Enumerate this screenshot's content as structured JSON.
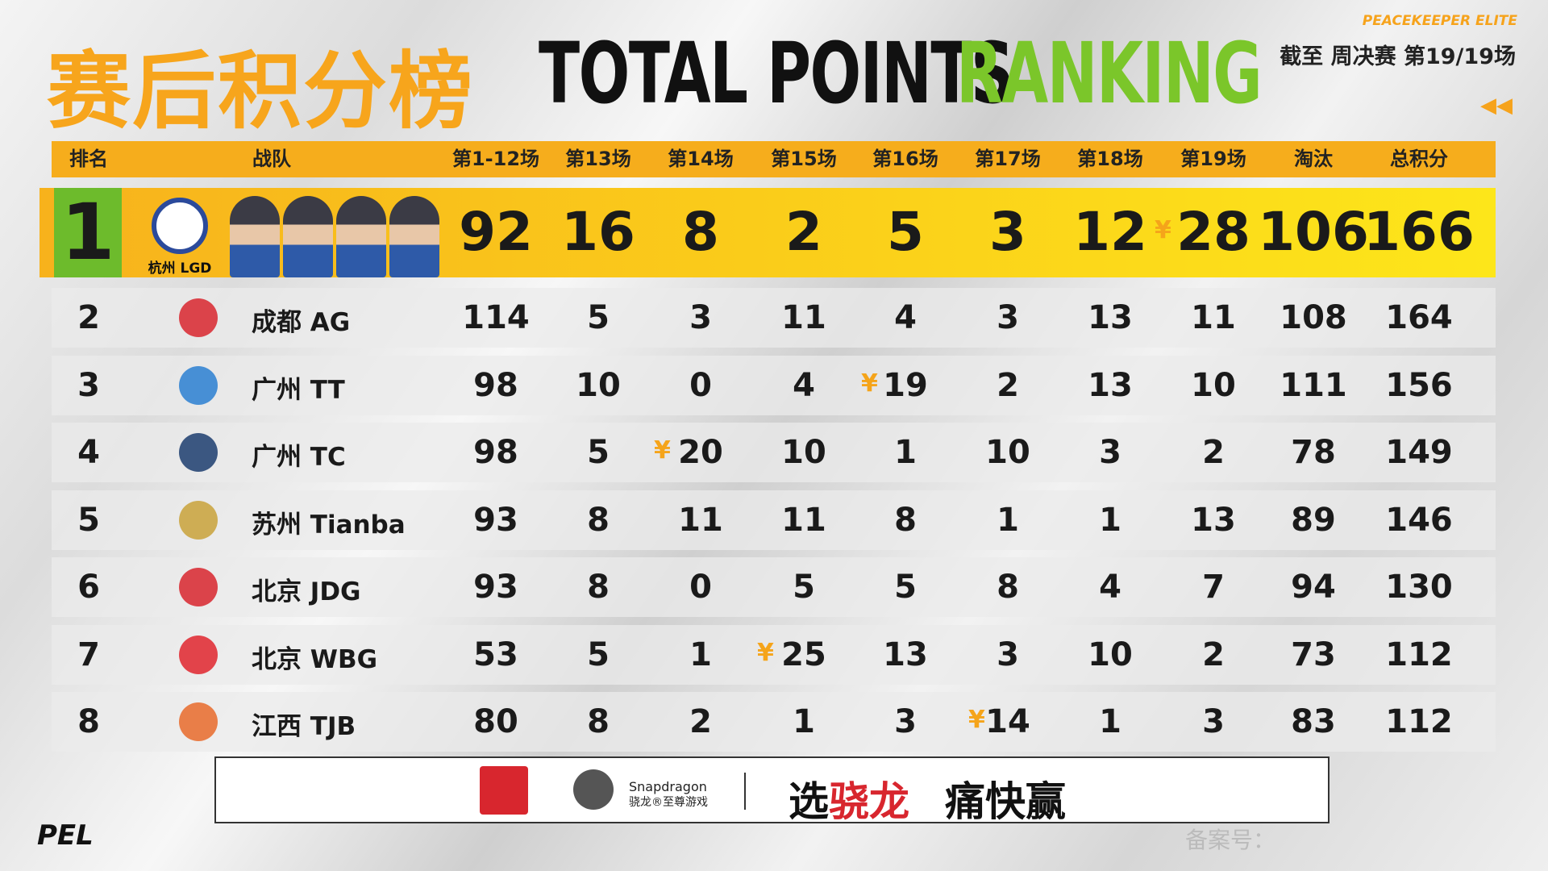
{
  "header": {
    "title_cn": "赛后积分榜",
    "title_en_1": "TOTAL POINTS",
    "title_en_2": "RANKING",
    "brand": "PEACEKEEPER ELITE",
    "progress": "截至 周决赛 第19/19场"
  },
  "table": {
    "columns": [
      "排名",
      "战队",
      "第1-12场",
      "第13场",
      "第14场",
      "第15场",
      "第16场",
      "第17场",
      "第18场",
      "第19场",
      "淘汰",
      "总积分"
    ],
    "rows": [
      [
        1,
        "杭州 LGD",
        92,
        16,
        8,
        2,
        5,
        3,
        12,
        28,
        106,
        166
      ],
      [
        2,
        "成都 AG",
        114,
        5,
        3,
        11,
        4,
        3,
        13,
        11,
        108,
        164
      ],
      [
        3,
        "广州 TT",
        98,
        10,
        0,
        4,
        19,
        2,
        13,
        10,
        111,
        156
      ],
      [
        4,
        "广州 TC",
        98,
        5,
        20,
        10,
        1,
        10,
        3,
        2,
        78,
        149
      ],
      [
        5,
        "苏州 Tianba",
        93,
        8,
        11,
        11,
        8,
        1,
        1,
        13,
        89,
        146
      ],
      [
        6,
        "北京 JDG",
        93,
        8,
        0,
        5,
        5,
        8,
        4,
        7,
        94,
        130
      ],
      [
        7,
        "北京 WBG",
        53,
        5,
        1,
        25,
        13,
        3,
        10,
        2,
        73,
        112
      ],
      [
        8,
        "江西 TJB",
        80,
        8,
        2,
        1,
        3,
        14,
        1,
        3,
        83,
        112
      ]
    ]
  },
  "sponsor": {
    "brand": "Snapdragon",
    "sub": "骁龙®至尊游戏",
    "slogan_1": "选",
    "slogan_2": "骁龙",
    "slogan_3": "痛快赢"
  },
  "footer": {
    "logo": "PEL",
    "icp": "备案号："
  }
}
